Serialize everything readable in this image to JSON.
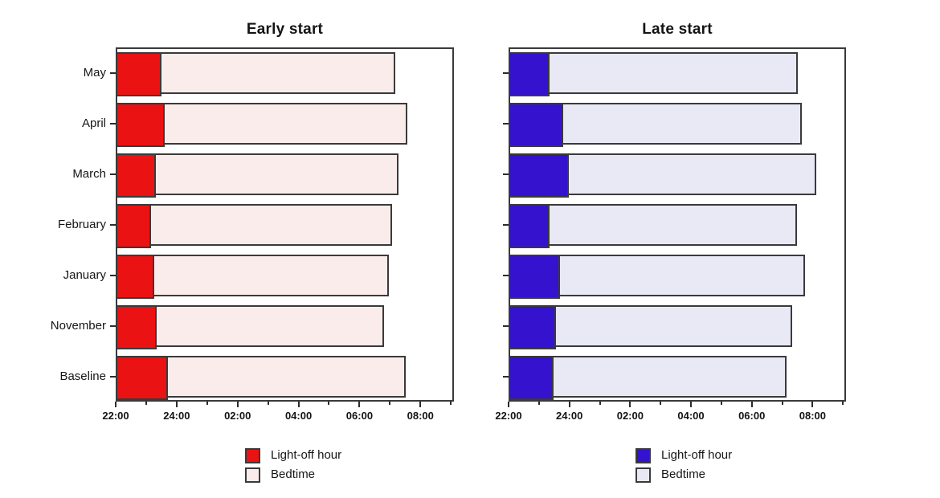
{
  "figure": {
    "background": "#ffffff",
    "text_color": "#161616",
    "frame_color": "#3a3a3a"
  },
  "chart_data": [
    {
      "type": "bar",
      "orientation": "horizontal",
      "stacked": true,
      "title": "Early start",
      "categories": [
        "May",
        "April",
        "March",
        "February",
        "January",
        "November",
        "Baseline"
      ],
      "x_axis": {
        "start_time": "22:00",
        "tick_labels": [
          "22:00",
          "24:00",
          "02:00",
          "04:00",
          "06:00",
          "08:00"
        ],
        "major_step_hours": 2,
        "minor_step_hours": 1,
        "range_hours_after_2200": [
          0,
          11.1
        ],
        "grid": false
      },
      "series": [
        {
          "name": "Light-off hour",
          "color": "#ea1212",
          "end_hours_after_2200": [
            1.51,
            1.61,
            1.32,
            1.15,
            1.26,
            1.35,
            1.72
          ],
          "end_times": [
            "23:31",
            "23:37",
            "23:19",
            "23:09",
            "23:16",
            "23:21",
            "23:43"
          ]
        },
        {
          "name": "Bedtime",
          "color": "#fbecec",
          "end_hours_after_2200": [
            9.18,
            9.56,
            9.29,
            9.07,
            8.97,
            8.81,
            9.53
          ],
          "end_times": [
            "07:11",
            "07:34",
            "07:17",
            "07:04",
            "06:58",
            "06:49",
            "07:32"
          ]
        }
      ],
      "legend": {
        "position": "bottom",
        "entries": [
          "Light-off hour",
          "Bedtime"
        ]
      }
    },
    {
      "type": "bar",
      "orientation": "horizontal",
      "stacked": true,
      "title": "Late start",
      "categories": [
        "May",
        "April",
        "March",
        "February",
        "January",
        "November",
        "Baseline"
      ],
      "category_labels_visible": false,
      "x_axis": {
        "start_time": "22:00",
        "tick_labels": [
          "22:00",
          "24:00",
          "02:00",
          "04:00",
          "06:00",
          "08:00"
        ],
        "major_step_hours": 2,
        "minor_step_hours": 1,
        "range_hours_after_2200": [
          0,
          11.1
        ],
        "grid": false
      },
      "series": [
        {
          "name": "Light-off hour",
          "color": "#3512cd",
          "end_hours_after_2200": [
            1.34,
            1.81,
            1.98,
            1.34,
            1.68,
            1.56,
            1.48
          ],
          "end_times": [
            "23:20",
            "23:49",
            "23:59",
            "23:20",
            "23:41",
            "23:34",
            "23:29"
          ]
        },
        {
          "name": "Bedtime",
          "color": "#e9e9f6",
          "end_hours_after_2200": [
            9.52,
            9.64,
            10.13,
            9.49,
            9.74,
            9.32,
            9.14
          ],
          "end_times": [
            "07:31",
            "07:38",
            "08:08",
            "07:29",
            "07:44",
            "07:19",
            "07:08"
          ]
        }
      ],
      "legend": {
        "position": "bottom",
        "entries": [
          "Light-off hour",
          "Bedtime"
        ]
      }
    }
  ]
}
